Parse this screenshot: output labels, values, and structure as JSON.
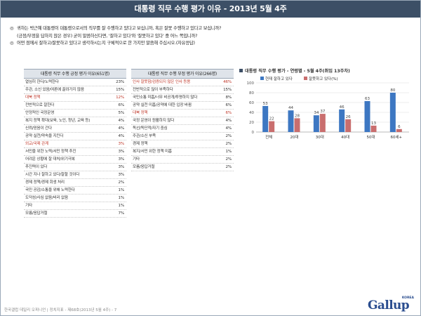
{
  "title": "대통령 직무 수행 평가 이유 - 2013년 5월 4주",
  "questions": {
    "q1_line1": "귀하는 박근혜 대통령이 대통령으로서의 직무를 잘 수행하고 있다고 보십니까, 혹은 잘못 수행하고 있다고 보십니까?",
    "q1_line2": "(긍정/부정을 답하지 않은 경우) 굳이 말씀하신다면, '잘하고 있다'와 '잘못하고 있다' 중 어느 쪽입니까?",
    "q2": "어떤 점에서 잘하고/잘못하고 있다고 생각하시는지 구체적으로 한 가지만 말씀해 주십시오.(자유응답)",
    "bullet": "◎"
  },
  "positive_table": {
    "header": "대통령 직무 수행 긍정 평가 이유(651명)",
    "rows": [
      {
        "label": "열심히 한다/노력한다",
        "value": "23%",
        "highlight": false
      },
      {
        "label": "주관, 소신 있음/여론에 끌려가지 않음",
        "value": "15%",
        "highlight": false
      },
      {
        "label": "대북 정책",
        "value": "12%",
        "highlight": true
      },
      {
        "label": "전반적으로 잘한다",
        "value": "6%",
        "highlight": false
      },
      {
        "label": "안정적인 국정운영",
        "value": "5%",
        "highlight": false
      },
      {
        "label": "복지 정책 확대(보육, 노인, 청년, 교육 등)",
        "value": "4%",
        "highlight": false
      },
      {
        "label": "신뢰/믿음이 간다",
        "value": "4%",
        "highlight": false
      },
      {
        "label": "공약 실천/약속을 지킨다",
        "value": "4%",
        "highlight": false
      },
      {
        "label": "외교/국제 관계",
        "value": "3%",
        "highlight": true
      },
      {
        "label": "서민을 위한 노력/서민 정책 추진",
        "value": "3%",
        "highlight": false
      },
      {
        "label": "어려운 상황에 잘 대처/위기극복",
        "value": "3%",
        "highlight": false
      },
      {
        "label": "추진력이 있다",
        "value": "3%",
        "highlight": false
      },
      {
        "label": "시간 지나 잘하고 있다/잘할 것이다",
        "value": "3%",
        "highlight": false
      },
      {
        "label": "경제 정책/경제 회생 처리",
        "value": "2%",
        "highlight": false
      },
      {
        "label": "국민 공감/소통을 위해 노력한다",
        "value": "1%",
        "highlight": false
      },
      {
        "label": "도덕성/사심 없음/비리 없음",
        "value": "1%",
        "highlight": false
      },
      {
        "label": "기타",
        "value": "1%",
        "highlight": false
      },
      {
        "label": "모름/응답거절",
        "value": "7%",
        "highlight": false
      }
    ]
  },
  "negative_table": {
    "header": "대통령 직무 수행 부정 평가 이유(266명)",
    "rows": [
      {
        "label": "인사 잘못함/검증되지 않은 인사 등용",
        "value": "46%",
        "highlight": true
      },
      {
        "label": "전반적으로 많이 부족하다",
        "value": "15%",
        "highlight": false
      },
      {
        "label": "국민소통 미흡/너무 비공개/투명하지 않다",
        "value": "8%",
        "highlight": false
      },
      {
        "label": "공약 실천 미흡/공약에 대한 입장 바뀜",
        "value": "6%",
        "highlight": false
      },
      {
        "label": "대북 정책",
        "value": "6%",
        "highlight": true
      },
      {
        "label": "국정 운영이 원활하지 않다",
        "value": "4%",
        "highlight": false
      },
      {
        "label": "독선/독단적/자기 중심",
        "value": "4%",
        "highlight": false
      },
      {
        "label": "주관/소신 부족",
        "value": "2%",
        "highlight": false
      },
      {
        "label": "경제 정책",
        "value": "2%",
        "highlight": false
      },
      {
        "label": "복지/서민 위한 정책 미흡",
        "value": "1%",
        "highlight": false
      },
      {
        "label": "기타",
        "value": "2%",
        "highlight": false
      },
      {
        "label": "모름/응답거절",
        "value": "2%",
        "highlight": false
      }
    ]
  },
  "chart_data": {
    "type": "bar",
    "title": "대통령 직무 수행 평가 - 연령별 - 5월 4주(취임 13주차)",
    "categories": [
      "전체",
      "20대",
      "30대",
      "40대",
      "50대",
      "60세+"
    ],
    "series": [
      {
        "name": "현재 잘하고 있다",
        "values": [
          53,
          44,
          34,
          46,
          63,
          80
        ],
        "color": "#3d77c2"
      },
      {
        "name": "잘못하고 있다(%)",
        "values": [
          22,
          28,
          37,
          26,
          13,
          6
        ],
        "color": "#c96e6e"
      }
    ],
    "yticks": [
      "100",
      "80",
      "60",
      "40",
      "20",
      "0"
    ],
    "ylim": [
      0,
      100
    ],
    "grid": true,
    "legend_position": "top"
  },
  "footer": "한국갤럽 데일리 오피니언 | 정치지표 - 제68호(2013년 5월 4주) - 7",
  "logo": {
    "text": "Gallup",
    "korea": "KOREA",
    "color": "#2a4d8f"
  }
}
